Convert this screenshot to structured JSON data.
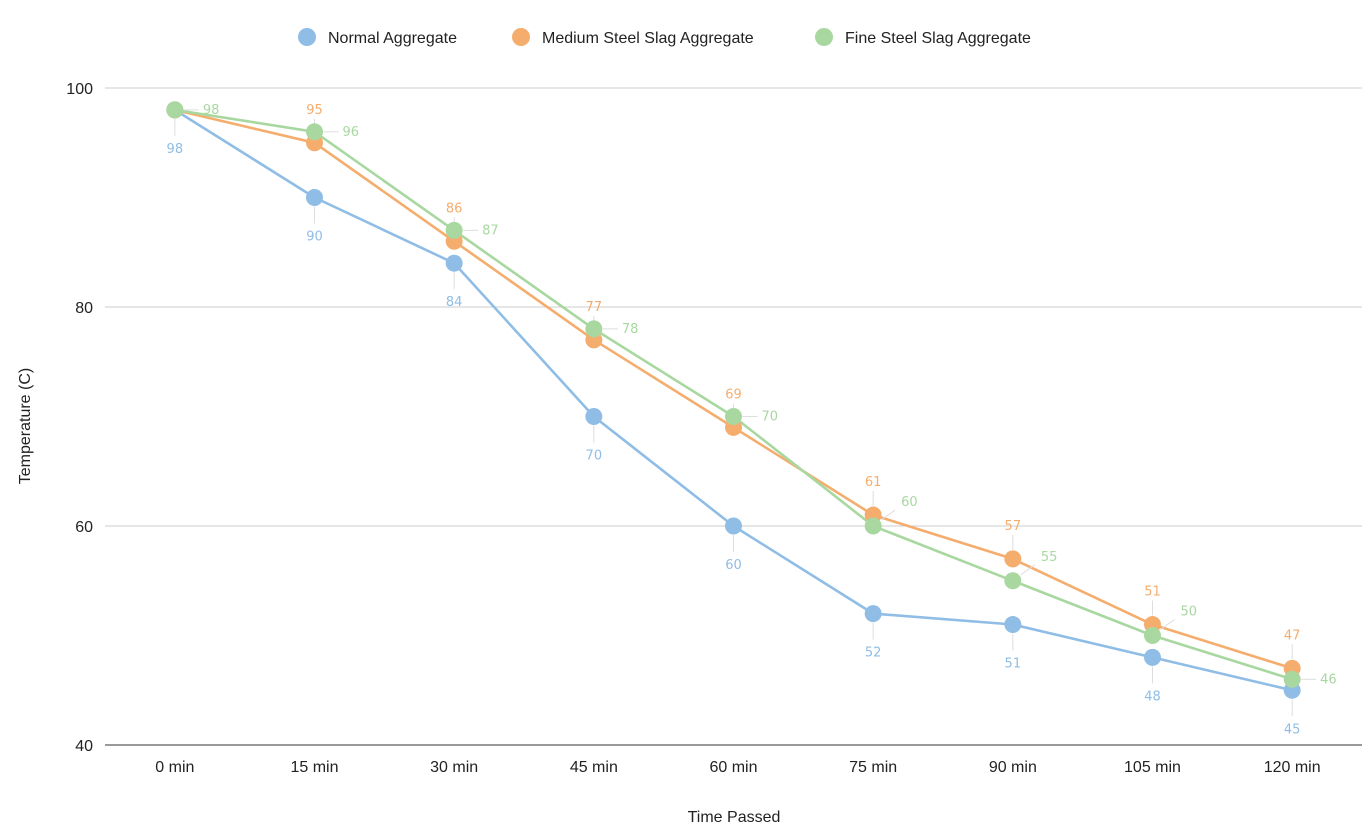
{
  "chart_data": {
    "type": "line",
    "title": "",
    "xlabel": "Time Passed",
    "ylabel": "Temperature (C)",
    "categories": [
      "0 min",
      "15 min",
      "30 min",
      "45 min",
      "60 min",
      "75 min",
      "90 min",
      "105 min",
      "120 min"
    ],
    "ylim": [
      40,
      100
    ],
    "yticks": [
      40,
      60,
      80,
      100
    ],
    "grid": true,
    "legend_position": "top",
    "series": [
      {
        "name": "Normal Aggregate",
        "color": "#8fbde6",
        "values": [
          98,
          90,
          84,
          70,
          60,
          52,
          51,
          48,
          45
        ],
        "label_position": "below"
      },
      {
        "name": "Medium Steel Slag Aggregate",
        "color": "#f5ad6e",
        "values": [
          98,
          95,
          86,
          77,
          69,
          61,
          57,
          51,
          47
        ],
        "label_position": "above"
      },
      {
        "name": "Fine Steel Slag Aggregate",
        "color": "#a8d8a0",
        "values": [
          98,
          96,
          87,
          78,
          70,
          60,
          55,
          50,
          46
        ],
        "label_position": "right"
      }
    ],
    "data_labels": [
      {
        "series": 0,
        "index": 0,
        "text": "98"
      },
      {
        "series": 0,
        "index": 1,
        "text": "90"
      },
      {
        "series": 0,
        "index": 2,
        "text": "84"
      },
      {
        "series": 0,
        "index": 3,
        "text": "70"
      },
      {
        "series": 0,
        "index": 4,
        "text": "60"
      },
      {
        "series": 0,
        "index": 5,
        "text": "52"
      },
      {
        "series": 0,
        "index": 6,
        "text": "51"
      },
      {
        "series": 0,
        "index": 7,
        "text": "48"
      },
      {
        "series": 0,
        "index": 8,
        "text": "45"
      },
      {
        "series": 1,
        "index": 1,
        "text": "95"
      },
      {
        "series": 1,
        "index": 2,
        "text": "86"
      },
      {
        "series": 1,
        "index": 3,
        "text": "77"
      },
      {
        "series": 1,
        "index": 4,
        "text": "69"
      },
      {
        "series": 1,
        "index": 5,
        "text": "61"
      },
      {
        "series": 1,
        "index": 6,
        "text": "57"
      },
      {
        "series": 1,
        "index": 7,
        "text": "51"
      },
      {
        "series": 1,
        "index": 8,
        "text": "47"
      },
      {
        "series": 2,
        "index": 0,
        "text": "98"
      },
      {
        "series": 2,
        "index": 1,
        "text": "96"
      },
      {
        "series": 2,
        "index": 2,
        "text": "87"
      },
      {
        "series": 2,
        "index": 3,
        "text": "78"
      },
      {
        "series": 2,
        "index": 4,
        "text": "70"
      },
      {
        "series": 2,
        "index": 5,
        "text": "60"
      },
      {
        "series": 2,
        "index": 6,
        "text": "55"
      },
      {
        "series": 2,
        "index": 7,
        "text": "50"
      },
      {
        "series": 2,
        "index": 8,
        "text": "46"
      }
    ]
  }
}
